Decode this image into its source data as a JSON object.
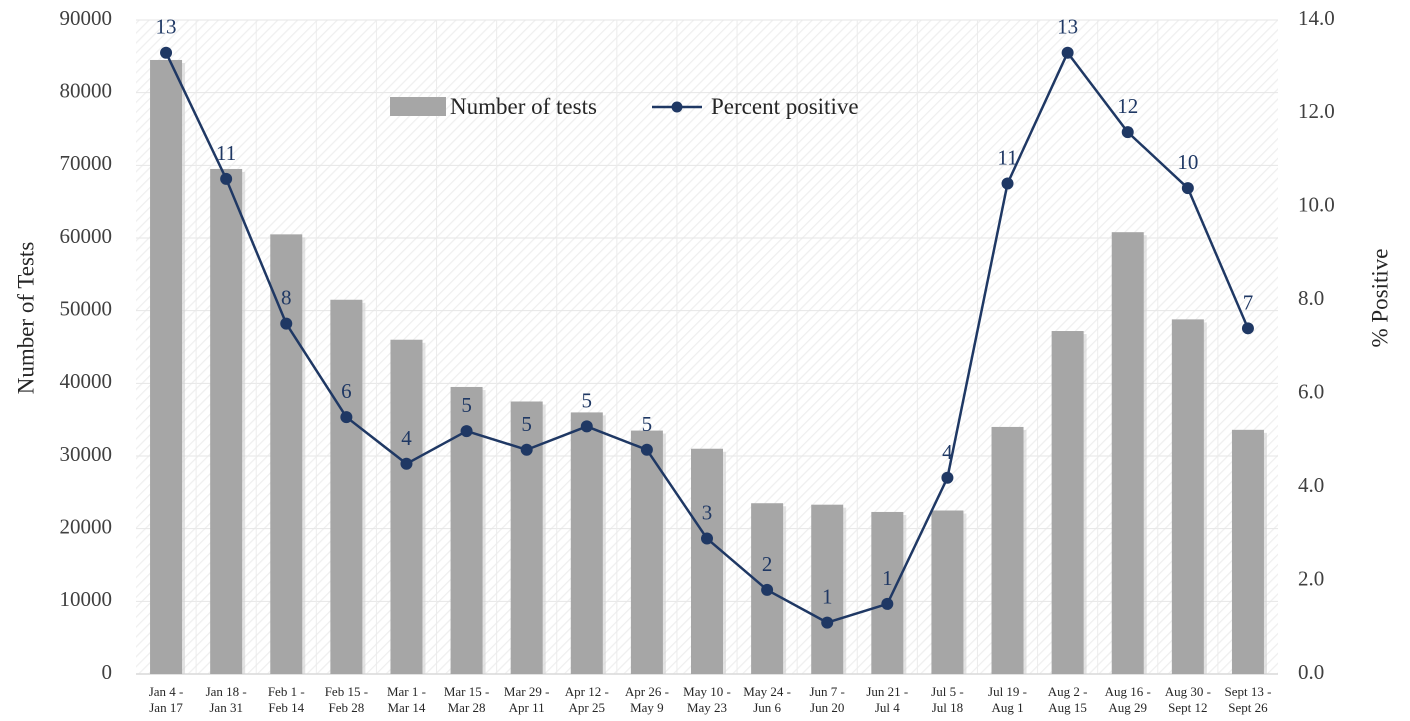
{
  "chart_data": {
    "type": "bar",
    "title": "",
    "categories": [
      [
        "Jan 4 -",
        "Jan 17"
      ],
      [
        "Jan 18 -",
        "Jan 31"
      ],
      [
        "Feb 1 -",
        "Feb 14"
      ],
      [
        "Feb 15 -",
        "Feb 28"
      ],
      [
        "Mar 1 -",
        "Mar 14"
      ],
      [
        "Mar 15 -",
        "Mar 28"
      ],
      [
        "Mar 29 -",
        "Apr 11"
      ],
      [
        "Apr 12 -",
        "Apr 25"
      ],
      [
        "Apr 26 -",
        "May 9"
      ],
      [
        "May 10 -",
        "May 23"
      ],
      [
        "May 24 -",
        "Jun 6"
      ],
      [
        "Jun 7 -",
        "Jun 20"
      ],
      [
        "Jun 21 -",
        "Jul 4"
      ],
      [
        "Jul 5 -",
        "Jul 18"
      ],
      [
        "Jul 19 -",
        "Aug 1"
      ],
      [
        "Aug 2 -",
        "Aug 15"
      ],
      [
        "Aug 16 -",
        "Aug 29"
      ],
      [
        "Aug 30 -",
        "Sept 12"
      ],
      [
        "Sept 13 -",
        "Sept 26"
      ]
    ],
    "series": [
      {
        "name": "Number of tests",
        "type": "bar",
        "axis": "left",
        "color": "#a6a6a6",
        "values": [
          84500,
          69500,
          60500,
          51500,
          46000,
          39500,
          37500,
          36000,
          33500,
          31000,
          23500,
          23300,
          22300,
          22500,
          34000,
          47200,
          60800,
          48800,
          33600
        ]
      },
      {
        "name": "Percent positive",
        "type": "line",
        "axis": "right",
        "color": "#1f3864",
        "values": [
          13.3,
          10.6,
          7.5,
          5.5,
          4.5,
          5.2,
          4.8,
          5.3,
          4.8,
          2.9,
          1.8,
          1.1,
          1.5,
          4.2,
          10.5,
          13.3,
          11.6,
          10.4,
          7.4
        ],
        "data_labels": [
          "13",
          "11",
          "8",
          "6",
          "4",
          "5",
          "5",
          "5",
          "5",
          "3",
          "2",
          "1",
          "1",
          "4",
          "11",
          "13",
          "12",
          "10",
          "7"
        ]
      }
    ],
    "ylabel": "Number of Tests",
    "ylim": [
      0,
      90000
    ],
    "yticks": [
      "0",
      "10000",
      "20000",
      "30000",
      "40000",
      "50000",
      "60000",
      "70000",
      "80000",
      "90000"
    ],
    "y2label": "% Positive",
    "y2lim": [
      0,
      14
    ],
    "y2ticks": [
      "0.0",
      "2.0",
      "4.0",
      "6.0",
      "8.0",
      "10.0",
      "12.0",
      "14.0"
    ],
    "grid": true,
    "legend": "top-center"
  }
}
